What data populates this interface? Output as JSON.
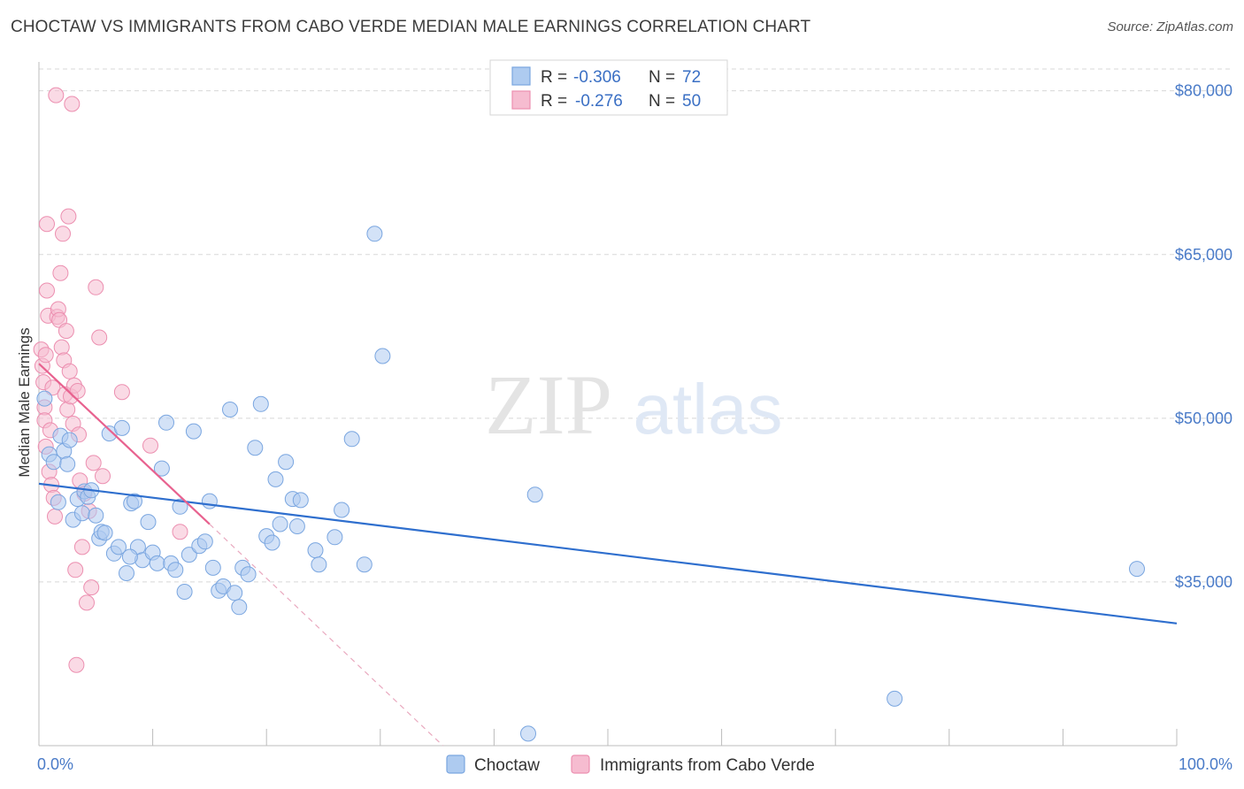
{
  "title": "CHOCTAW VS IMMIGRANTS FROM CABO VERDE MEDIAN MALE EARNINGS CORRELATION CHART",
  "source": "Source: ZipAtlas.com",
  "watermark": {
    "zip": "ZIP",
    "atlas": "atlas"
  },
  "colors": {
    "blue_fill": "#aecbf0",
    "blue_stroke": "#7aa6e0",
    "blue_line": "#2f6fce",
    "pink_fill": "#f6bcd0",
    "pink_stroke": "#ec8fb0",
    "pink_line": "#e8628f",
    "grid": "#d8d8d8",
    "axis_text": "#4a7bc8"
  },
  "legend": {
    "rows": [
      {
        "r_label": "R =",
        "r_value": "-0.306",
        "n_label": "N =",
        "n_value": "72"
      },
      {
        "r_label": "R =",
        "r_value": "-0.276",
        "n_label": "N =",
        "n_value": "50"
      }
    ]
  },
  "chart_data": {
    "type": "scatter",
    "title": "CHOCTAW VS IMMIGRANTS FROM CABO VERDE MEDIAN MALE EARNINGS CORRELATION CHART",
    "xlabel": "",
    "ylabel": "Median Male Earnings",
    "xlim": [
      0,
      100
    ],
    "ylim": [
      20000,
      82000
    ],
    "x_tick_labels": [
      "0.0%",
      "100.0%"
    ],
    "y_ticks": [
      {
        "value": 35000,
        "label": "$35,000"
      },
      {
        "value": 50000,
        "label": "$50,000"
      },
      {
        "value": 65000,
        "label": "$65,000"
      },
      {
        "value": 80000,
        "label": "$80,000"
      }
    ],
    "series": [
      {
        "name": "Choctaw",
        "color": "blue",
        "r": -0.306,
        "n": 72,
        "trend": {
          "x0": 0,
          "y0": 44000,
          "x1": 100,
          "y1": 31200
        },
        "points": [
          [
            0.5,
            51800
          ],
          [
            0.9,
            46700
          ],
          [
            1.3,
            46000
          ],
          [
            1.7,
            42300
          ],
          [
            1.9,
            48400
          ],
          [
            2.2,
            47000
          ],
          [
            2.5,
            45800
          ],
          [
            2.7,
            48000
          ],
          [
            3.0,
            40700
          ],
          [
            3.4,
            42600
          ],
          [
            3.8,
            41300
          ],
          [
            4.0,
            43300
          ],
          [
            4.3,
            42800
          ],
          [
            4.6,
            43400
          ],
          [
            5.0,
            41100
          ],
          [
            5.3,
            39000
          ],
          [
            5.5,
            39600
          ],
          [
            5.8,
            39500
          ],
          [
            6.2,
            48600
          ],
          [
            6.6,
            37600
          ],
          [
            7.0,
            38200
          ],
          [
            7.3,
            49100
          ],
          [
            7.7,
            35800
          ],
          [
            8.1,
            42200
          ],
          [
            8.4,
            42400
          ],
          [
            8.7,
            38200
          ],
          [
            9.1,
            37000
          ],
          [
            9.6,
            40500
          ],
          [
            10.0,
            37700
          ],
          [
            10.4,
            36700
          ],
          [
            10.8,
            45400
          ],
          [
            11.2,
            49600
          ],
          [
            11.6,
            36700
          ],
          [
            12.0,
            36100
          ],
          [
            12.4,
            41900
          ],
          [
            12.8,
            34100
          ],
          [
            13.2,
            37500
          ],
          [
            13.6,
            48800
          ],
          [
            14.1,
            38300
          ],
          [
            14.6,
            38700
          ],
          [
            15.0,
            42400
          ],
          [
            15.3,
            36300
          ],
          [
            15.8,
            34200
          ],
          [
            16.2,
            34600
          ],
          [
            16.8,
            50800
          ],
          [
            17.2,
            34000
          ],
          [
            17.6,
            32700
          ],
          [
            17.9,
            36300
          ],
          [
            18.4,
            35700
          ],
          [
            19.0,
            47300
          ],
          [
            19.5,
            51300
          ],
          [
            20.0,
            39200
          ],
          [
            20.5,
            38600
          ],
          [
            20.8,
            44400
          ],
          [
            21.2,
            40300
          ],
          [
            21.7,
            46000
          ],
          [
            22.3,
            42600
          ],
          [
            22.7,
            40100
          ],
          [
            23.0,
            42500
          ],
          [
            24.3,
            37900
          ],
          [
            24.6,
            36600
          ],
          [
            26.0,
            39100
          ],
          [
            26.6,
            41600
          ],
          [
            27.5,
            48100
          ],
          [
            28.6,
            36600
          ],
          [
            29.5,
            66900
          ],
          [
            30.2,
            55700
          ],
          [
            43.6,
            43000
          ],
          [
            75.2,
            24300
          ],
          [
            96.5,
            36200
          ],
          [
            43.0,
            21100
          ],
          [
            8.0,
            37300
          ]
        ]
      },
      {
        "name": "Immigrants from Cabo Verde",
        "color": "pink",
        "r": -0.276,
        "n": 50,
        "trend": {
          "x0": 0,
          "y0": 55000,
          "x1": 15,
          "y1": 40300,
          "dash_x1": 35.5,
          "dash_y1": 20000
        },
        "points": [
          [
            0.2,
            56300
          ],
          [
            0.3,
            54800
          ],
          [
            0.4,
            53300
          ],
          [
            0.5,
            51000
          ],
          [
            0.5,
            49800
          ],
          [
            0.6,
            47400
          ],
          [
            0.6,
            55800
          ],
          [
            0.7,
            61700
          ],
          [
            0.7,
            67800
          ],
          [
            0.8,
            59400
          ],
          [
            0.9,
            45100
          ],
          [
            1.0,
            48900
          ],
          [
            1.1,
            43900
          ],
          [
            1.2,
            52800
          ],
          [
            1.3,
            42700
          ],
          [
            1.4,
            41000
          ],
          [
            1.5,
            79600
          ],
          [
            1.6,
            59300
          ],
          [
            1.7,
            60000
          ],
          [
            1.8,
            59000
          ],
          [
            1.9,
            63300
          ],
          [
            2.0,
            56500
          ],
          [
            2.1,
            66900
          ],
          [
            2.2,
            55300
          ],
          [
            2.3,
            52200
          ],
          [
            2.4,
            58000
          ],
          [
            2.5,
            50800
          ],
          [
            2.6,
            68500
          ],
          [
            2.7,
            54300
          ],
          [
            2.8,
            52000
          ],
          [
            2.9,
            78800
          ],
          [
            3.0,
            49500
          ],
          [
            3.1,
            53000
          ],
          [
            3.2,
            36100
          ],
          [
            3.3,
            27400
          ],
          [
            3.4,
            52500
          ],
          [
            3.5,
            48500
          ],
          [
            3.6,
            44300
          ],
          [
            3.8,
            38200
          ],
          [
            4.0,
            43100
          ],
          [
            4.2,
            33100
          ],
          [
            4.4,
            41500
          ],
          [
            4.6,
            34500
          ],
          [
            4.8,
            45900
          ],
          [
            5.0,
            62000
          ],
          [
            5.3,
            57400
          ],
          [
            5.6,
            44700
          ],
          [
            7.3,
            52400
          ],
          [
            9.8,
            47500
          ],
          [
            12.4,
            39600
          ]
        ]
      }
    ]
  },
  "bottom_legend": [
    {
      "label": "Choctaw",
      "color": "blue"
    },
    {
      "label": "Immigrants from Cabo Verde",
      "color": "pink"
    }
  ]
}
